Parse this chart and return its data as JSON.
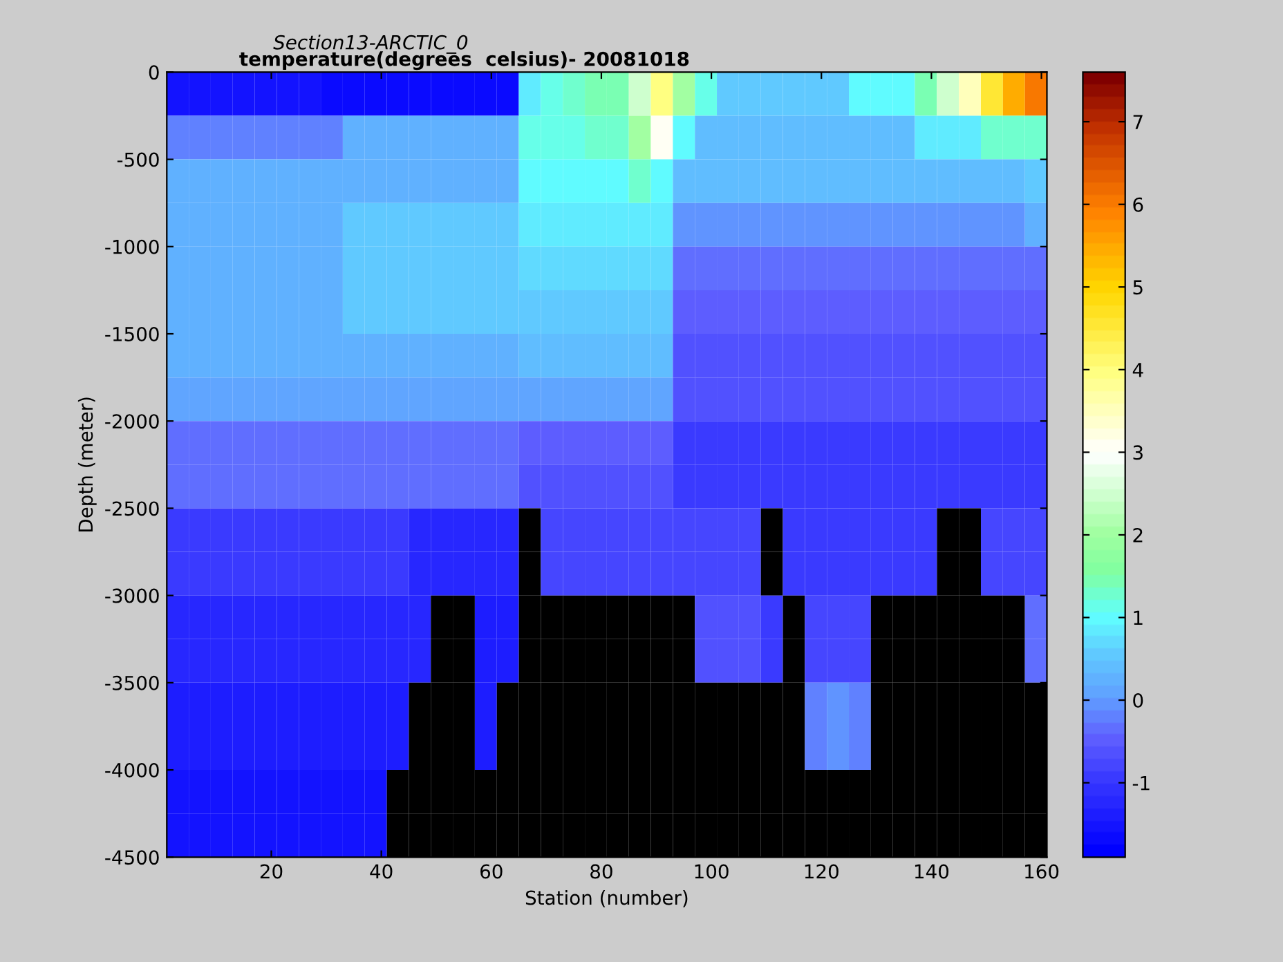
{
  "chart_data": {
    "type": "heatmap",
    "title": "Section13-ARCTIC_0",
    "subtitle": "temperature(degrees  celsius)- 20081018",
    "xlabel": "Station (number)",
    "ylabel": "Depth (meter)",
    "x": [
      3,
      7,
      11,
      15,
      19,
      23,
      27,
      31,
      35,
      39,
      43,
      47,
      51,
      55,
      59,
      63,
      67,
      71,
      75,
      79,
      83,
      87,
      91,
      95,
      99,
      103,
      107,
      111,
      115,
      119,
      123,
      127,
      131,
      135,
      139,
      143,
      147,
      151,
      155,
      159
    ],
    "xlim": [
      1,
      161
    ],
    "xticks": [
      20,
      40,
      60,
      80,
      100,
      120,
      140,
      160
    ],
    "ylim": [
      -4500,
      0
    ],
    "yticks": [
      0,
      -500,
      -1000,
      -1500,
      -2000,
      -2500,
      -3000,
      -3500,
      -4000,
      -4500
    ],
    "clim": [
      -1.9,
      7.6
    ],
    "cticks": [
      -1,
      0,
      1,
      2,
      3,
      4,
      5,
      6,
      7
    ],
    "cells": [
      [
        -1.6,
        -1.6,
        -1.6,
        -1.6,
        -1.6,
        -1.6,
        -1.6,
        -1.7,
        -1.7,
        -1.7,
        -1.7,
        -1.7,
        -1.7,
        -1.7,
        -1.7,
        -1.7,
        0.8,
        1.2,
        1.3,
        1.4,
        1.5,
        2.5,
        4.0,
        2.0,
        1.2,
        0.5,
        0.5,
        0.5,
        0.5,
        0.5,
        0.5,
        1.0,
        1.0,
        1.0,
        1.5,
        2.5,
        3.5,
        4.5,
        5.5,
        6.0
      ],
      [
        -0.2,
        -0.2,
        -0.2,
        -0.2,
        -0.2,
        -0.2,
        -0.2,
        -0.2,
        0.2,
        0.2,
        0.2,
        0.2,
        0.2,
        0.2,
        0.2,
        0.2,
        1.2,
        1.2,
        1.2,
        1.3,
        1.3,
        2.0,
        3.0,
        1.0,
        0.4,
        0.4,
        0.4,
        0.4,
        0.4,
        0.4,
        0.4,
        0.4,
        0.4,
        0.4,
        0.8,
        0.8,
        0.8,
        1.3,
        1.3,
        1.3
      ],
      [
        0.3,
        0.3,
        0.3,
        0.3,
        0.3,
        0.3,
        0.3,
        0.3,
        0.3,
        0.3,
        0.3,
        0.3,
        0.3,
        0.3,
        0.3,
        0.3,
        1.0,
        1.0,
        1.0,
        1.0,
        1.0,
        1.3,
        1.0,
        0.4,
        0.4,
        0.4,
        0.4,
        0.4,
        0.4,
        0.4,
        0.4,
        0.4,
        0.4,
        0.4,
        0.4,
        0.4,
        0.4,
        0.4,
        0.4,
        0.6
      ],
      [
        0.3,
        0.3,
        0.3,
        0.3,
        0.3,
        0.3,
        0.3,
        0.3,
        0.5,
        0.5,
        0.5,
        0.5,
        0.5,
        0.5,
        0.5,
        0.5,
        0.8,
        0.8,
        0.8,
        0.8,
        0.8,
        0.8,
        0.8,
        0.0,
        0.0,
        0.0,
        0.0,
        0.0,
        0.0,
        0.0,
        0.0,
        0.0,
        0.0,
        0.0,
        0.0,
        0.0,
        0.0,
        0.0,
        0.0,
        0.2
      ],
      [
        0.3,
        0.3,
        0.3,
        0.3,
        0.3,
        0.3,
        0.3,
        0.3,
        0.5,
        0.5,
        0.5,
        0.5,
        0.5,
        0.5,
        0.5,
        0.5,
        0.7,
        0.7,
        0.7,
        0.7,
        0.7,
        0.7,
        0.7,
        -0.3,
        -0.3,
        -0.3,
        -0.3,
        -0.3,
        -0.3,
        -0.3,
        -0.3,
        -0.3,
        -0.3,
        -0.3,
        -0.3,
        -0.3,
        -0.3,
        -0.3,
        -0.3,
        -0.3
      ],
      [
        0.3,
        0.3,
        0.3,
        0.3,
        0.3,
        0.3,
        0.3,
        0.3,
        0.5,
        0.5,
        0.5,
        0.5,
        0.5,
        0.5,
        0.5,
        0.5,
        0.6,
        0.6,
        0.6,
        0.6,
        0.6,
        0.6,
        0.6,
        -0.5,
        -0.5,
        -0.5,
        -0.5,
        -0.5,
        -0.5,
        -0.5,
        -0.5,
        -0.5,
        -0.5,
        -0.5,
        -0.5,
        -0.5,
        -0.5,
        -0.5,
        -0.5,
        -0.5
      ],
      [
        0.3,
        0.3,
        0.3,
        0.3,
        0.3,
        0.3,
        0.3,
        0.3,
        0.3,
        0.3,
        0.3,
        0.3,
        0.3,
        0.3,
        0.3,
        0.3,
        0.4,
        0.4,
        0.4,
        0.4,
        0.4,
        0.4,
        0.4,
        -0.6,
        -0.6,
        -0.6,
        -0.6,
        -0.6,
        -0.6,
        -0.6,
        -0.6,
        -0.6,
        -0.6,
        -0.6,
        -0.6,
        -0.6,
        -0.6,
        -0.6,
        -0.6,
        -0.6
      ],
      [
        0.1,
        0.1,
        0.1,
        0.1,
        0.1,
        0.1,
        0.1,
        0.1,
        0.1,
        0.1,
        0.1,
        0.1,
        0.1,
        0.1,
        0.1,
        0.1,
        0.1,
        0.1,
        0.1,
        0.1,
        0.1,
        0.1,
        0.1,
        -0.7,
        -0.7,
        -0.7,
        -0.7,
        -0.7,
        -0.7,
        -0.7,
        -0.7,
        -0.7,
        -0.7,
        -0.7,
        -0.7,
        -0.7,
        -0.7,
        -0.7,
        -0.7,
        -0.7
      ],
      [
        -0.4,
        -0.4,
        -0.4,
        -0.4,
        -0.4,
        -0.4,
        -0.4,
        -0.4,
        -0.4,
        -0.4,
        -0.4,
        -0.4,
        -0.4,
        -0.4,
        -0.4,
        -0.4,
        -0.5,
        -0.5,
        -0.5,
        -0.5,
        -0.5,
        -0.5,
        -0.5,
        -0.9,
        -0.9,
        -0.9,
        -0.9,
        -0.9,
        -0.9,
        -0.9,
        -0.9,
        -0.9,
        -0.9,
        -0.9,
        -0.9,
        -0.9,
        -0.9,
        -0.9,
        -0.9,
        -0.9
      ],
      [
        -0.4,
        -0.4,
        -0.4,
        -0.4,
        -0.4,
        -0.4,
        -0.4,
        -0.4,
        -0.4,
        -0.4,
        -0.4,
        -0.4,
        -0.4,
        -0.4,
        -0.4,
        -0.4,
        -0.6,
        -0.6,
        -0.6,
        -0.6,
        -0.6,
        -0.6,
        -0.6,
        -0.9,
        -0.9,
        -0.9,
        -0.9,
        -0.9,
        -0.9,
        -0.9,
        -0.9,
        -0.9,
        -0.9,
        -0.9,
        -0.9,
        -0.9,
        -0.9,
        -0.9,
        -0.9,
        -0.9
      ],
      [
        -0.9,
        -0.9,
        -0.9,
        -0.9,
        -0.9,
        -0.9,
        -0.9,
        -0.9,
        -0.9,
        -0.9,
        -0.9,
        -1.2,
        -1.2,
        -1.2,
        -1.2,
        -1.2,
        null,
        -0.8,
        -0.8,
        -0.8,
        -0.8,
        -0.8,
        -0.8,
        -0.8,
        -0.8,
        -0.8,
        -0.8,
        null,
        -0.9,
        -0.9,
        -0.9,
        -0.9,
        -0.9,
        -0.9,
        -0.9,
        null,
        null,
        -0.8,
        -0.8,
        -0.8
      ],
      [
        -0.9,
        -0.9,
        -0.9,
        -0.9,
        -0.9,
        -0.9,
        -0.9,
        -0.9,
        -0.9,
        -0.9,
        -0.9,
        -1.2,
        -1.2,
        -1.2,
        -1.2,
        -1.2,
        null,
        -0.8,
        -0.8,
        -0.8,
        -0.8,
        -0.8,
        -0.8,
        -0.8,
        -0.8,
        -0.8,
        -0.8,
        null,
        -0.9,
        -0.9,
        -0.9,
        -0.9,
        -0.9,
        -0.9,
        -0.9,
        null,
        null,
        -0.8,
        -0.8,
        -0.8
      ],
      [
        -1.3,
        -1.3,
        -1.3,
        -1.3,
        -1.3,
        -1.3,
        -1.3,
        -1.3,
        -1.3,
        -1.3,
        -1.3,
        -1.3,
        null,
        null,
        -1.4,
        -1.4,
        null,
        null,
        null,
        null,
        null,
        null,
        null,
        null,
        -0.7,
        -0.7,
        -0.7,
        -0.9,
        null,
        -0.8,
        -0.8,
        -0.8,
        null,
        null,
        null,
        null,
        null,
        null,
        null,
        -0.4
      ],
      [
        -1.3,
        -1.3,
        -1.3,
        -1.3,
        -1.3,
        -1.3,
        -1.3,
        -1.3,
        -1.3,
        -1.3,
        -1.3,
        -1.3,
        null,
        null,
        -1.4,
        -1.4,
        null,
        null,
        null,
        null,
        null,
        null,
        null,
        null,
        -0.7,
        -0.7,
        -0.7,
        -0.9,
        null,
        -0.8,
        -0.8,
        -0.8,
        null,
        null,
        null,
        null,
        null,
        null,
        null,
        -0.4
      ],
      [
        -1.4,
        -1.4,
        -1.4,
        -1.4,
        -1.4,
        -1.4,
        -1.4,
        -1.4,
        -1.4,
        -1.4,
        -1.4,
        null,
        null,
        null,
        -1.4,
        null,
        null,
        null,
        null,
        null,
        null,
        null,
        null,
        null,
        null,
        null,
        null,
        null,
        null,
        -0.2,
        -0.1,
        -0.2,
        null,
        null,
        null,
        null,
        null,
        null,
        null,
        null
      ],
      [
        -1.4,
        -1.4,
        -1.4,
        -1.4,
        -1.4,
        -1.4,
        -1.4,
        -1.4,
        -1.4,
        -1.4,
        -1.4,
        null,
        null,
        null,
        -1.4,
        null,
        null,
        null,
        null,
        null,
        null,
        null,
        null,
        null,
        null,
        null,
        null,
        null,
        null,
        -0.2,
        -0.1,
        -0.2,
        null,
        null,
        null,
        null,
        null,
        null,
        null,
        null
      ],
      [
        -1.5,
        -1.5,
        -1.5,
        -1.5,
        -1.5,
        -1.5,
        -1.5,
        -1.5,
        -1.5,
        -1.5,
        null,
        null,
        null,
        null,
        null,
        null,
        null,
        null,
        null,
        null,
        null,
        null,
        null,
        null,
        null,
        null,
        null,
        null,
        null,
        null,
        null,
        null,
        null,
        null,
        null,
        null,
        null,
        null,
        null,
        null
      ],
      [
        -1.5,
        -1.5,
        -1.5,
        -1.5,
        -1.5,
        -1.5,
        -1.5,
        -1.5,
        -1.5,
        -1.5,
        null,
        null,
        null,
        null,
        null,
        null,
        null,
        null,
        null,
        null,
        null,
        null,
        null,
        null,
        null,
        null,
        null,
        null,
        null,
        null,
        null,
        null,
        null,
        null,
        null,
        null,
        null,
        null,
        null,
        null
      ]
    ]
  }
}
